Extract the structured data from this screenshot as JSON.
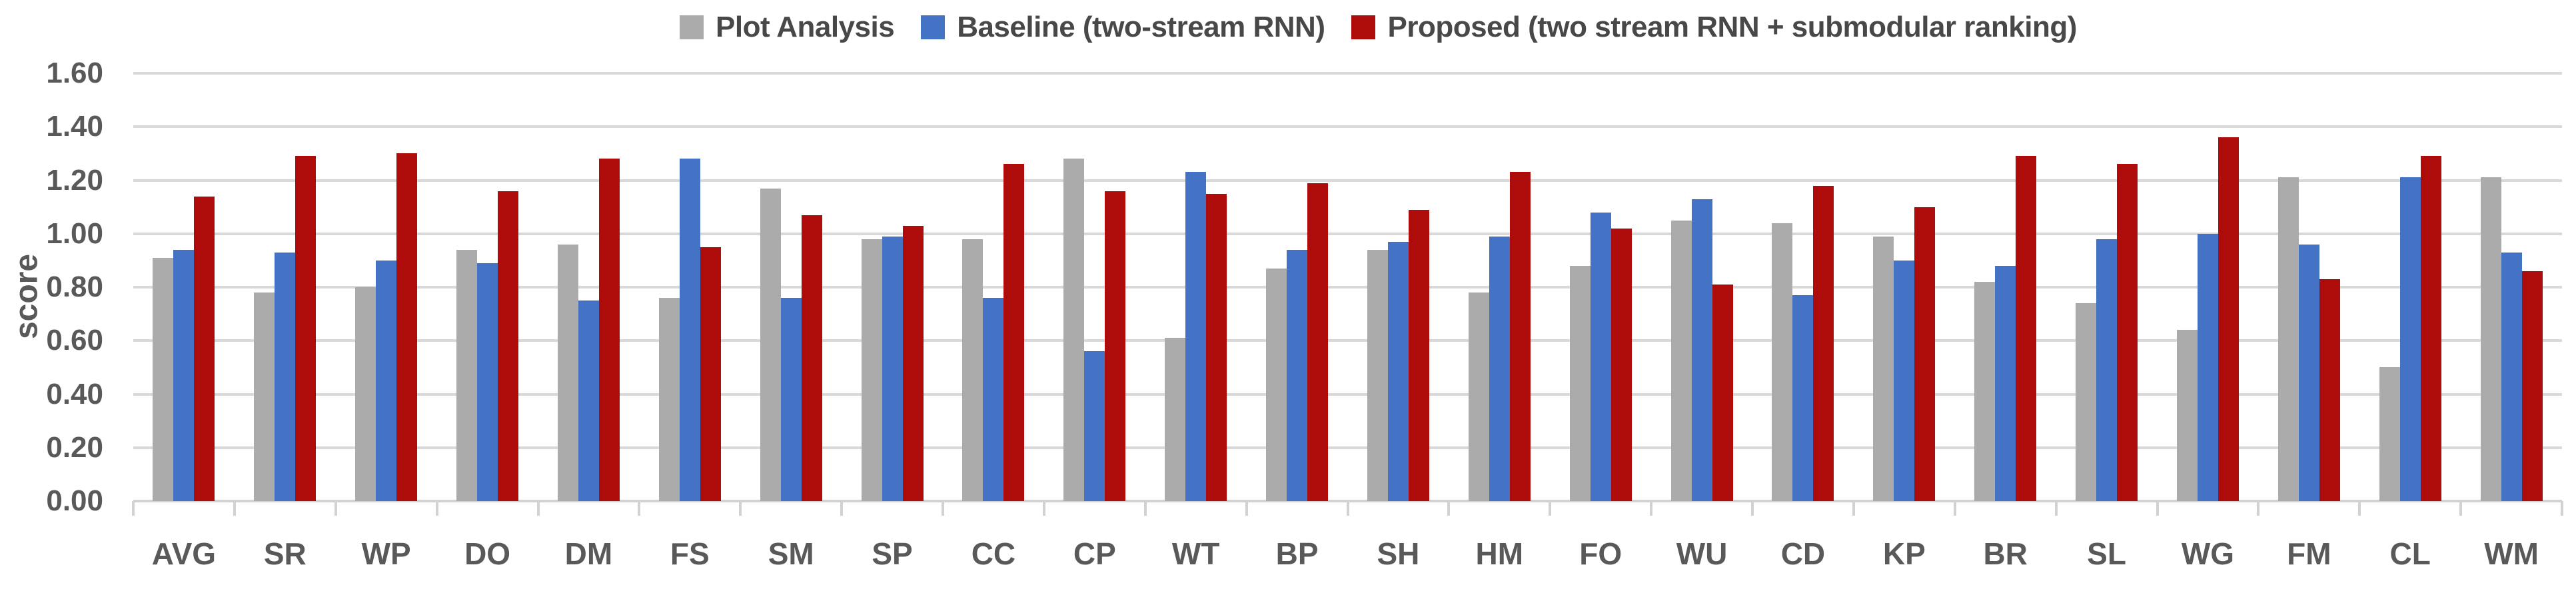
{
  "chart_data": {
    "type": "bar",
    "title": "",
    "xlabel": "",
    "ylabel": "score",
    "ylim": [
      0,
      1.6
    ],
    "grid": true,
    "legend_position": "top",
    "ytick_labels": [
      "0.00",
      "0.20",
      "0.40",
      "0.60",
      "0.80",
      "1.00",
      "1.20",
      "1.40",
      "1.60"
    ],
    "ytick_values": [
      0,
      0.2,
      0.4,
      0.6,
      0.8,
      1.0,
      1.2,
      1.4,
      1.6
    ],
    "categories": [
      "AVG",
      "SR",
      "WP",
      "DO",
      "DM",
      "FS",
      "SM",
      "SP",
      "CC",
      "CP",
      "WT",
      "BP",
      "SH",
      "HM",
      "FO",
      "WU",
      "CD",
      "KP",
      "BR",
      "SL",
      "WG",
      "FM",
      "CL",
      "WM"
    ],
    "series": [
      {
        "name": "Plot Analysis",
        "color": "#ABABAB",
        "values": [
          0.91,
          0.78,
          0.8,
          0.94,
          0.96,
          0.76,
          1.17,
          0.98,
          0.98,
          1.28,
          0.61,
          0.87,
          0.94,
          0.78,
          0.88,
          1.05,
          1.04,
          0.99,
          0.82,
          0.74,
          0.64,
          1.21,
          0.5,
          1.21
        ]
      },
      {
        "name": "Baseline (two-stream RNN)",
        "color": "#4472C4",
        "values": [
          0.94,
          0.93,
          0.9,
          0.89,
          0.75,
          1.28,
          0.76,
          0.99,
          0.76,
          0.56,
          1.23,
          0.94,
          0.97,
          0.99,
          1.08,
          1.13,
          0.77,
          0.9,
          0.88,
          0.98,
          1.0,
          0.96,
          1.21,
          0.93
        ]
      },
      {
        "name": "Proposed (two stream RNN + submodular ranking)",
        "color": "#AE0B0B",
        "values": [
          1.14,
          1.29,
          1.3,
          1.16,
          1.28,
          0.95,
          1.07,
          1.03,
          1.26,
          1.16,
          1.15,
          1.19,
          1.09,
          1.23,
          1.02,
          0.81,
          1.18,
          1.1,
          1.29,
          1.26,
          1.36,
          0.83,
          1.29,
          0.86
        ]
      }
    ]
  },
  "colors": {
    "gridline": "#D9D9D9",
    "axis": "#D2D2D2",
    "axis_text": "#595959",
    "legend_text": "#484848",
    "background": "#FFFFFF"
  }
}
